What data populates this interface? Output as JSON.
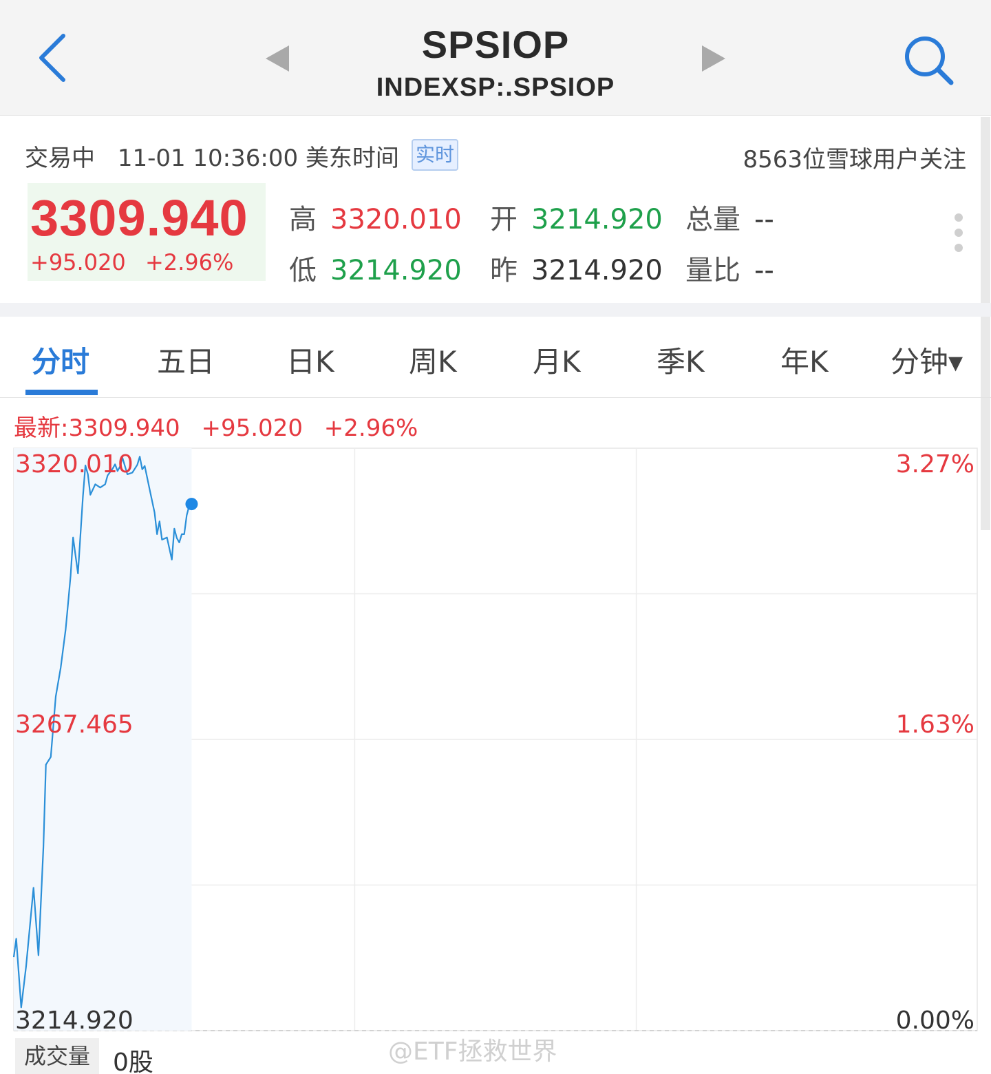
{
  "header": {
    "title": "SPSIOP",
    "subtitle": "INDEXSP:.SPSIOP",
    "icons": [
      "chevron-left-icon",
      "triangle-left-icon",
      "triangle-right-icon",
      "search-icon"
    ]
  },
  "quote": {
    "status": "交易中",
    "datetime": "11-01 10:36:00 美东时间",
    "realtime_badge": "实时",
    "followers": "8563位雪球用户关注",
    "price": "3309.940",
    "change": "+95.020",
    "change_pct": "+2.96%",
    "stats": {
      "high_label": "高",
      "high": "3320.010",
      "low_label": "低",
      "low": "3214.920",
      "open_label": "开",
      "open": "3214.920",
      "prev_label": "昨",
      "prev": "3214.920",
      "volume_label": "总量",
      "volume": "--",
      "ratio_label": "量比",
      "ratio": "--"
    }
  },
  "tabs": [
    "分时",
    "五日",
    "日K",
    "周K",
    "月K",
    "季K",
    "年K",
    "分钟▾"
  ],
  "active_tab": 0,
  "chart_header": {
    "latest": "最新:3309.940",
    "change": "+95.020",
    "change_pct": "+2.96%"
  },
  "volume": {
    "label": "成交量",
    "value": "0股"
  },
  "watermark": "@ETF拯救世界",
  "colors": {
    "up": "#e53940",
    "down": "#1ea04b",
    "accent": "#2a7bd8",
    "line": "#2a8fd8"
  },
  "chart_data": {
    "type": "line",
    "y_labels_left": [
      "3320.010",
      "3267.465",
      "3214.920"
    ],
    "y_labels_right": [
      "3.27%",
      "1.63%",
      "0.00%"
    ],
    "ylim": [
      3214.92,
      3320.01
    ],
    "x_domain_minutes": 390,
    "grid": true,
    "last_point_marker": true,
    "series": [
      {
        "x": [
          0,
          1,
          3,
          5,
          8,
          10,
          12,
          13,
          15,
          17,
          19,
          21,
          22,
          23,
          24,
          26,
          28,
          29,
          30,
          31,
          33,
          35,
          37,
          38,
          40,
          41,
          42,
          43,
          44,
          46,
          48,
          50,
          51,
          52,
          53,
          55,
          57,
          58,
          59,
          60,
          62,
          64,
          65,
          66,
          67,
          68,
          69,
          70,
          71,
          72
        ],
        "y": [
          3228.2,
          3231.5,
          3219.1,
          3226.5,
          3240.7,
          3228.5,
          3248.1,
          3262.9,
          3264.3,
          3275.2,
          3280.4,
          3287.3,
          3292.1,
          3297.0,
          3303.9,
          3297.4,
          3311.3,
          3316.9,
          3315.3,
          3311.6,
          3313.5,
          3312.9,
          3313.5,
          3315.1,
          3316.3,
          3317.1,
          3315.9,
          3316.7,
          3318.3,
          3315.3,
          3315.6,
          3317.0,
          3318.5,
          3316.2,
          3316.8,
          3312.6,
          3308.4,
          3304.5,
          3306.8,
          3303.5,
          3303.9,
          3299.9,
          3305.5,
          3303.8,
          3303.0,
          3304.5,
          3304.5,
          3307.9,
          3309.6,
          3309.94
        ]
      }
    ]
  }
}
